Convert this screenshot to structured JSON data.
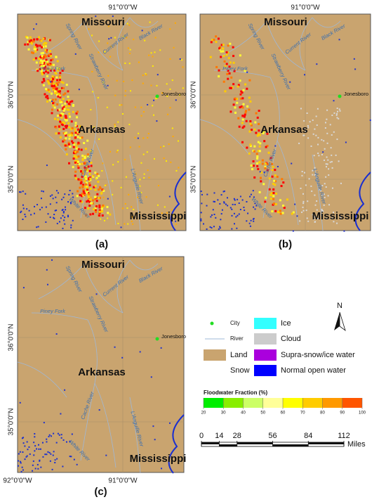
{
  "panels": [
    {
      "label": "(a)",
      "top_lon": [
        "91°0'0\"W"
      ],
      "bottom_lon": [],
      "lat_labels": [
        "36°0'0\"N",
        "35°0'0\"N"
      ],
      "places": [
        "Missouri",
        "Arkansas",
        "Mississippi",
        "Piney Fork",
        "Spring River",
        "Current River",
        "Black River",
        "Strawberry River",
        "Jonesboro",
        "Cache River",
        "L'Anguille River",
        "White River"
      ]
    },
    {
      "label": "(b)",
      "top_lon": [
        "91°0'0\"W"
      ],
      "bottom_lon": [],
      "lat_labels": [
        "36°0'0\"N",
        "35°0'0\"N"
      ],
      "places": [
        "Missouri",
        "Arkansas",
        "Mississippi",
        "Piney Fork",
        "Spring River",
        "Current River",
        "Black River",
        "Strawberry River",
        "Jonesboro",
        "Cache River",
        "L'Anguille River",
        "White River"
      ]
    },
    {
      "label": "(c)",
      "top_lon": [],
      "bottom_lon": [
        "92°0'0\"W",
        "91°0'0\"W"
      ],
      "lat_labels": [
        "36°0'0\"N",
        "35°0'0\"N"
      ],
      "places": [
        "Missouri",
        "Arkansas",
        "Mississippi",
        "Piney Fork",
        "Spring River",
        "Current River",
        "Black River",
        "Strawberry River",
        "Jonesboro",
        "Cache River",
        "L'Anguille River",
        "White River"
      ]
    }
  ],
  "legend": {
    "items": [
      "City",
      "River",
      "Land",
      "Snow",
      "Ice",
      "Cloud",
      "Supra-snow/ice water",
      "Normal open water"
    ],
    "north": "N"
  },
  "colorbar": {
    "title": "Floodwater Fraction (%)",
    "ticks": [
      20,
      30,
      40,
      50,
      60,
      70,
      80,
      90,
      100
    ],
    "colors": [
      "#00ee00",
      "#88ee00",
      "#ccff66",
      "#ffff99",
      "#ffff00",
      "#ffcc00",
      "#ff9900",
      "#ff5500",
      "#ff0000"
    ]
  },
  "scalebar": {
    "ticks": [
      0,
      14,
      28,
      56,
      84,
      112
    ],
    "unit": "Miles"
  }
}
